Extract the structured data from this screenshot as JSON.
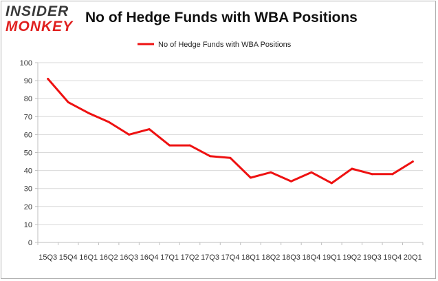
{
  "logo": {
    "line1": "INSIDER",
    "line2": "MONKEY"
  },
  "chart_data": {
    "type": "line",
    "title": "No of Hedge Funds with WBA Positions",
    "xlabel": "",
    "ylabel": "",
    "categories": [
      "15Q3",
      "15Q4",
      "16Q1",
      "16Q2",
      "16Q3",
      "16Q4",
      "17Q1",
      "17Q2",
      "17Q3",
      "17Q4",
      "18Q1",
      "18Q2",
      "18Q3",
      "18Q4",
      "19Q1",
      "19Q2",
      "19Q3",
      "19Q4",
      "20Q1"
    ],
    "series": [
      {
        "name": "No of Hedge Funds with WBA Positions",
        "color": "#ee1111",
        "values": [
          91,
          78,
          72,
          67,
          60,
          63,
          54,
          54,
          48,
          47,
          36,
          39,
          34,
          39,
          33,
          41,
          38,
          38,
          45
        ]
      }
    ],
    "yticks": [
      0,
      10,
      20,
      30,
      40,
      50,
      60,
      70,
      80,
      90,
      100
    ],
    "ylim": [
      0,
      100
    ],
    "grid": true,
    "legend": "top-center"
  }
}
